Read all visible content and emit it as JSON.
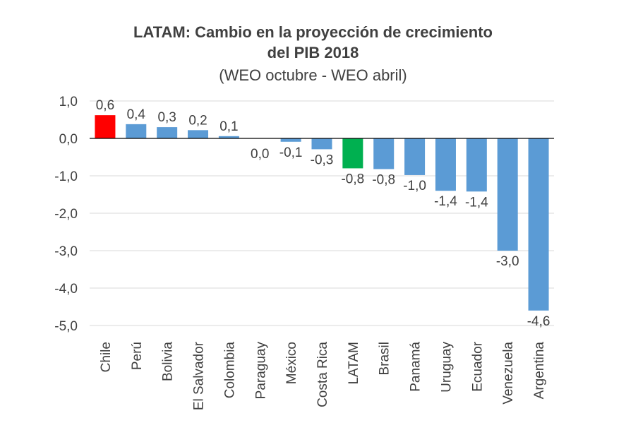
{
  "chart_data": {
    "type": "bar",
    "title_line1": "LATAM: Cambio en la proyección de crecimiento",
    "title_line2": "del PIB 2018",
    "subtitle": "(WEO octubre - WEO abril)",
    "xlabel": "",
    "ylabel": "",
    "ylim": [
      -5.0,
      1.0
    ],
    "yticks": [
      1.0,
      0.0,
      -1.0,
      -2.0,
      -3.0,
      -4.0,
      -5.0
    ],
    "ytick_labels": [
      "1,0",
      "0,0",
      "-1,0",
      "-2,0",
      "-3,0",
      "-4,0",
      "-5,0"
    ],
    "grid": true,
    "legend": "none",
    "categories": [
      "Chile",
      "Perú",
      "Bolivia",
      "El Salvador",
      "Colombia",
      "Paraguay",
      "México",
      "Costa Rica",
      "LATAM",
      "Brasil",
      "Panamá",
      "Uruguay",
      "Ecuador",
      "Venezuela",
      "Argentina"
    ],
    "values": [
      0.62,
      0.38,
      0.3,
      0.22,
      0.06,
      0.0,
      -0.09,
      -0.29,
      -0.8,
      -0.82,
      -0.98,
      -1.4,
      -1.42,
      -3.0,
      -4.6
    ],
    "value_labels": [
      "0,6",
      "0,4",
      "0,3",
      "0,2",
      "0,1",
      "0,0",
      "-0,1",
      "-0,3",
      "-0,8",
      "-0,8",
      "-1,0",
      "-1,4",
      "-1,4",
      "-3,0",
      "-4,6"
    ],
    "colors": [
      "#ff0000",
      "#5b9bd5",
      "#5b9bd5",
      "#5b9bd5",
      "#5b9bd5",
      "#5b9bd5",
      "#5b9bd5",
      "#5b9bd5",
      "#00b050",
      "#5b9bd5",
      "#5b9bd5",
      "#5b9bd5",
      "#5b9bd5",
      "#5b9bd5",
      "#5b9bd5"
    ],
    "grid_color": "#d9d9d9",
    "axis_color": "#000000"
  }
}
